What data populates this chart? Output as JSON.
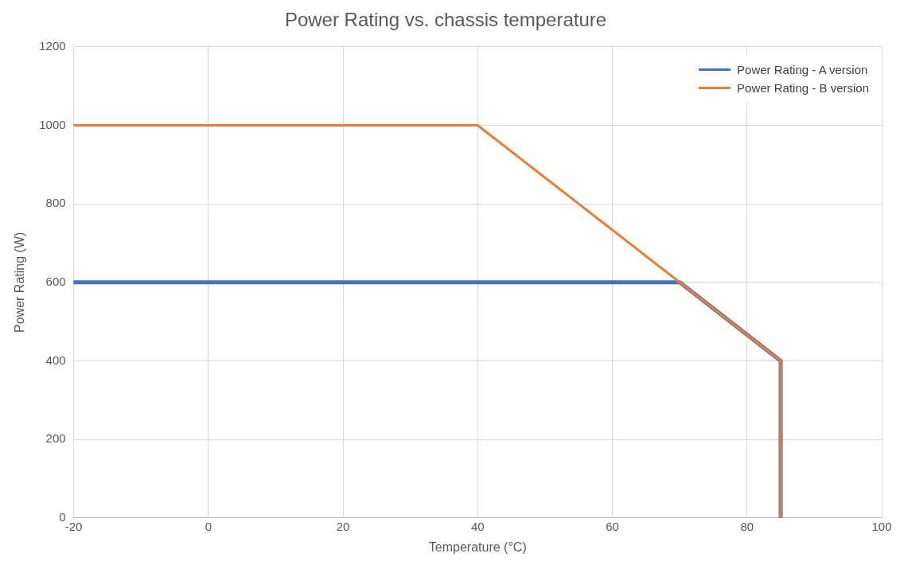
{
  "chart_data": {
    "type": "line",
    "title": "Power Rating vs. chassis temperature",
    "xlabel": "Temperature (°C)",
    "ylabel": "Power Rating (W)",
    "series": [
      {
        "name": "Power Rating - A version",
        "color": "#4472c4",
        "x": [
          -20,
          70,
          85,
          85
        ],
        "values": [
          600,
          600,
          400,
          0
        ]
      },
      {
        "name": "Power Rating - B version",
        "color": "#ed7d31",
        "x": [
          -20,
          40,
          85,
          85
        ],
        "values": [
          1000,
          1000,
          400,
          0
        ]
      }
    ],
    "xlim": [
      -20,
      100
    ],
    "xticks": [
      -20,
      0,
      20,
      40,
      60,
      80,
      100
    ],
    "ylim": [
      0,
      1200
    ],
    "yticks": [
      0,
      200,
      400,
      600,
      800,
      1000,
      1200
    ],
    "grid": true,
    "legend": "top right",
    "marker": "none",
    "line_style": "solid"
  }
}
